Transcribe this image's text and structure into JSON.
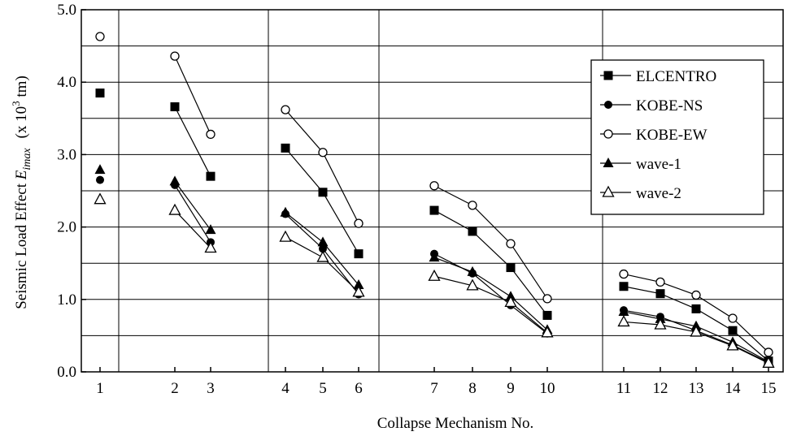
{
  "chart_data": {
    "type": "line",
    "title": "",
    "xlabel": "Collapse Mechanism No.",
    "ylabel": {
      "prefix": "Seismic Load Effect ",
      "symbol": "E",
      "subscript": "imax",
      "unit_prefix": "(x 10",
      "unit_exp": "3",
      "unit_suffix": " tm)"
    },
    "ylim": [
      0,
      5
    ],
    "y_ticks": [
      "0.0",
      "1.0",
      "2.0",
      "3.0",
      "4.0",
      "5.0"
    ],
    "y_gridlines": [
      0.5,
      1.0,
      1.5,
      2.0,
      2.5,
      3.0,
      3.5,
      4.0,
      4.5
    ],
    "x_categories": [
      "1",
      "2",
      "3",
      "4",
      "5",
      "6",
      "7",
      "8",
      "9",
      "10",
      "11",
      "12",
      "13",
      "14",
      "15"
    ],
    "groups": [
      [
        1
      ],
      [
        2,
        3
      ],
      [
        4,
        5,
        6
      ],
      [
        7,
        8,
        9,
        10
      ],
      [
        11,
        12,
        13,
        14,
        15
      ]
    ],
    "legend_position": "top-right",
    "series": [
      {
        "name": "ELCENTRO",
        "marker": "filled-square",
        "values": [
          3.85,
          3.66,
          2.7,
          3.09,
          2.48,
          1.63,
          2.23,
          1.94,
          1.44,
          0.78,
          1.18,
          1.08,
          0.87,
          0.57,
          0.15
        ]
      },
      {
        "name": "KOBE-NS",
        "marker": "filled-circle",
        "values": [
          2.65,
          2.58,
          1.79,
          2.18,
          1.7,
          1.07,
          1.63,
          1.36,
          0.92,
          0.53,
          0.85,
          0.76,
          0.57,
          0.37,
          0.13
        ]
      },
      {
        "name": "KOBE-EW",
        "marker": "open-circle",
        "values": [
          4.63,
          4.36,
          3.28,
          3.62,
          3.03,
          2.05,
          2.57,
          2.3,
          1.77,
          1.01,
          1.35,
          1.24,
          1.06,
          0.74,
          0.27
        ]
      },
      {
        "name": "wave-1",
        "marker": "filled-triangle",
        "values": [
          2.79,
          2.63,
          1.96,
          2.2,
          1.79,
          1.2,
          1.58,
          1.38,
          1.04,
          0.58,
          0.83,
          0.73,
          0.63,
          0.41,
          0.14
        ]
      },
      {
        "name": "wave-2",
        "marker": "open-triangle",
        "values": [
          2.38,
          2.23,
          1.71,
          1.86,
          1.58,
          1.1,
          1.32,
          1.19,
          0.96,
          0.54,
          0.69,
          0.65,
          0.55,
          0.36,
          0.12
        ]
      }
    ]
  }
}
